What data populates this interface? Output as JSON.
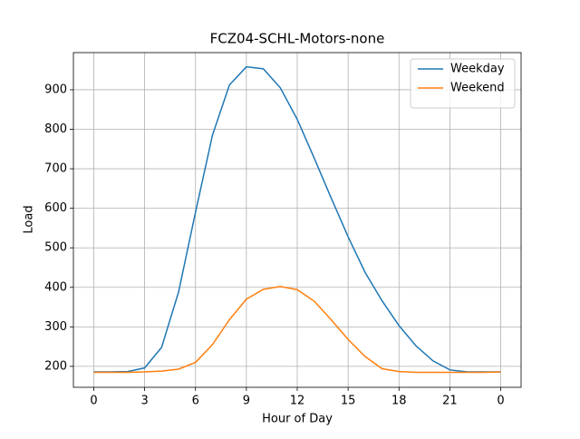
{
  "chart_data": {
    "type": "line",
    "title": "FCZ04-SCHL-Motors-none",
    "x_label": "Hour of Day",
    "y_label": "Load",
    "x": [
      0,
      1,
      2,
      3,
      4,
      5,
      6,
      7,
      8,
      9,
      10,
      11,
      12,
      13,
      14,
      15,
      16,
      17,
      18,
      19,
      20,
      21,
      22,
      23,
      24
    ],
    "series": [
      {
        "name": "Weekday",
        "color": "#1f77b4",
        "values": [
          186,
          186,
          187,
          196,
          248,
          388,
          590,
          785,
          912,
          958,
          953,
          905,
          825,
          727,
          626,
          528,
          438,
          366,
          303,
          252,
          214,
          191,
          186,
          186,
          186
        ]
      },
      {
        "name": "Weekend",
        "color": "#ff7f0e",
        "values": [
          185,
          185,
          185,
          186,
          188,
          193,
          210,
          255,
          318,
          370,
          395,
          402,
          394,
          365,
          318,
          268,
          225,
          194,
          187,
          185,
          185,
          185,
          185,
          185,
          186
        ]
      }
    ],
    "xlim": [
      -1.2,
      25.2
    ],
    "xticks": [
      0,
      3,
      6,
      9,
      12,
      15,
      18,
      21,
      {
        "value": 24,
        "label": "0"
      }
    ],
    "ylim": [
      147,
      994
    ],
    "yticks": [
      200,
      300,
      400,
      500,
      600,
      700,
      800,
      900
    ],
    "grid": true,
    "legend": "upper-right"
  }
}
